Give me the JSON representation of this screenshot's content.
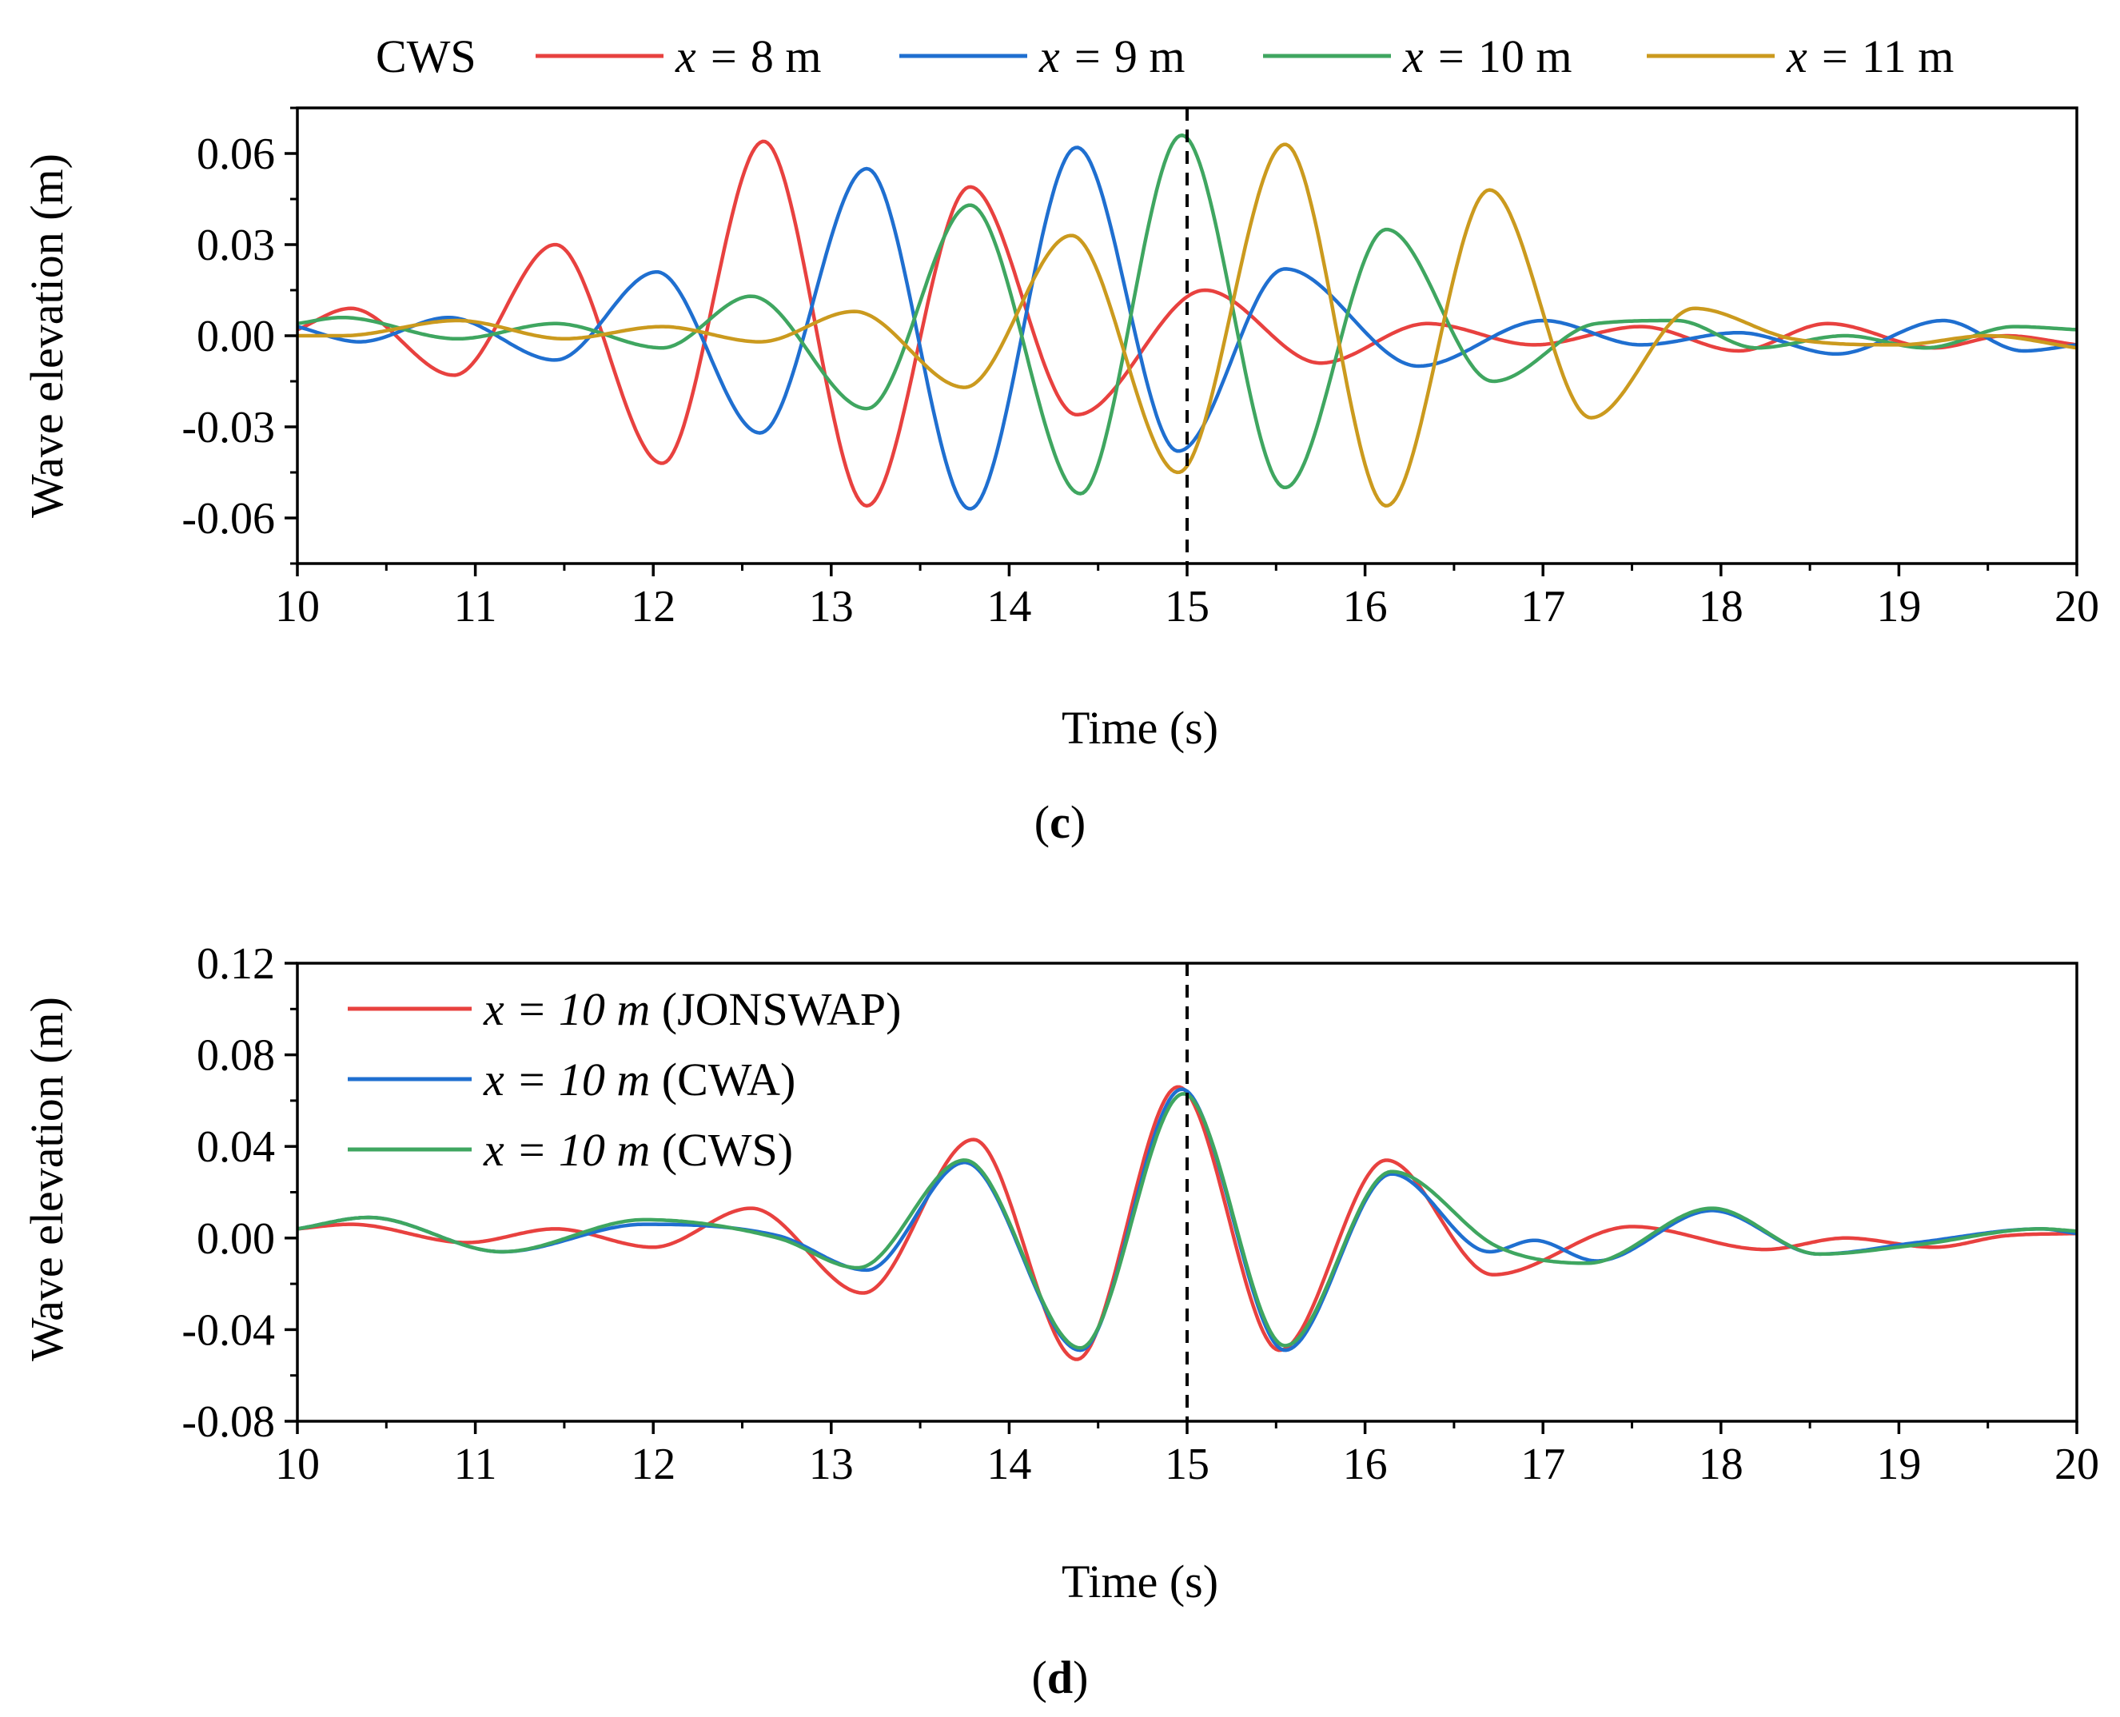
{
  "chart_data": [
    {
      "type": "line",
      "panel_label": "(c)",
      "panel_letter": "c",
      "legend_title": "CWS",
      "legend_prefix": "x = ",
      "legend_unit": " m",
      "xlabel": "Time (s)",
      "ylabel": "Wave elevation (m)",
      "xlim": [
        10,
        20
      ],
      "ylim": [
        -0.075,
        0.075
      ],
      "xticks": [
        10,
        11,
        12,
        13,
        14,
        15,
        16,
        17,
        18,
        19,
        20
      ],
      "xtick_labels": [
        "10",
        "11",
        "12",
        "13",
        "14",
        "15",
        "16",
        "17",
        "18",
        "19",
        "20"
      ],
      "yticks": [
        -0.06,
        -0.03,
        0.0,
        0.03,
        0.06
      ],
      "ytick_labels": [
        "-0.06",
        "-0.03",
        "0.00",
        "0.03",
        "0.06"
      ],
      "vline_x": 15,
      "legend_position": "top, outside",
      "series": [
        {
          "name": "x = 8 m",
          "value": "8",
          "color": "#e8413f",
          "x": [
            10.0,
            10.3,
            10.88,
            11.45,
            12.05,
            12.62,
            13.2,
            13.78,
            14.38,
            15.1,
            15.75,
            16.35,
            16.95,
            17.55,
            18.1,
            18.6,
            19.2,
            19.6,
            20.0
          ],
          "y": [
            0.002,
            0.009,
            -0.013,
            0.03,
            -0.042,
            0.064,
            -0.056,
            0.049,
            -0.026,
            0.015,
            -0.009,
            0.004,
            -0.003,
            0.003,
            -0.005,
            0.004,
            -0.004,
            0.0,
            -0.003
          ]
        },
        {
          "name": "x = 9 m",
          "value": "9",
          "color": "#1f6fd0",
          "x": [
            10.0,
            10.35,
            10.85,
            11.45,
            12.02,
            12.6,
            13.2,
            13.78,
            14.38,
            14.95,
            15.55,
            16.3,
            17.0,
            17.55,
            18.1,
            18.65,
            19.25,
            19.7,
            20.0
          ],
          "y": [
            0.003,
            -0.002,
            0.006,
            -0.008,
            0.021,
            -0.032,
            0.055,
            -0.057,
            0.062,
            -0.038,
            0.022,
            -0.01,
            0.005,
            -0.003,
            0.001,
            -0.006,
            0.005,
            -0.005,
            -0.003
          ]
        },
        {
          "name": "x = 10 m",
          "value": "10",
          "color": "#3fa660",
          "x": [
            10.0,
            10.25,
            10.9,
            11.45,
            12.05,
            12.55,
            13.2,
            13.78,
            14.4,
            14.97,
            15.55,
            16.12,
            16.72,
            17.3,
            17.75,
            18.2,
            18.7,
            19.15,
            19.65,
            20.0
          ],
          "y": [
            0.004,
            0.006,
            -0.001,
            0.004,
            -0.004,
            0.013,
            -0.024,
            0.043,
            -0.052,
            0.066,
            -0.05,
            0.035,
            -0.015,
            0.004,
            0.005,
            -0.004,
            0.0,
            -0.004,
            0.003,
            0.002
          ]
        },
        {
          "name": "x = 11 m",
          "value": "11",
          "color": "#cb9a1e",
          "x": [
            10.0,
            10.25,
            10.9,
            11.5,
            12.05,
            12.6,
            13.13,
            13.75,
            14.35,
            14.95,
            15.55,
            16.12,
            16.7,
            17.27,
            17.85,
            18.4,
            19.0,
            19.5,
            20.0
          ],
          "y": [
            0.0,
            0.0,
            0.005,
            -0.001,
            0.003,
            -0.002,
            0.008,
            -0.017,
            0.033,
            -0.045,
            0.063,
            -0.056,
            0.048,
            -0.027,
            0.009,
            -0.001,
            -0.003,
            0.0,
            -0.004
          ]
        }
      ]
    },
    {
      "type": "line",
      "panel_label": "(d)",
      "panel_letter": "d",
      "legend_prefix": "x = 10 m ",
      "xlabel": "Time (s)",
      "ylabel": "Wave elevation (m)",
      "xlim": [
        10,
        20
      ],
      "ylim": [
        -0.08,
        0.12
      ],
      "xticks": [
        10,
        11,
        12,
        13,
        14,
        15,
        16,
        17,
        18,
        19,
        20
      ],
      "xtick_labels": [
        "10",
        "11",
        "12",
        "13",
        "14",
        "15",
        "16",
        "17",
        "18",
        "19",
        "20"
      ],
      "yticks": [
        -0.08,
        -0.04,
        0.0,
        0.04,
        0.08,
        0.12
      ],
      "ytick_labels": [
        "-0.08",
        "-0.04",
        "0.00",
        "0.04",
        "0.08",
        "0.12"
      ],
      "vline_x": 15,
      "legend_position": "top-left",
      "series": [
        {
          "name": "x = 10 m (JONSWAP)",
          "tag": "(JONSWAP)",
          "color": "#e8413f",
          "x": [
            10.0,
            10.3,
            10.95,
            11.45,
            12.0,
            12.55,
            13.18,
            13.8,
            14.38,
            14.95,
            15.52,
            16.12,
            16.72,
            17.5,
            18.25,
            18.7,
            19.2,
            19.6,
            20.0
          ],
          "y": [
            0.004,
            0.006,
            -0.002,
            0.004,
            -0.004,
            0.013,
            -0.024,
            0.043,
            -0.053,
            0.066,
            -0.049,
            0.034,
            -0.016,
            0.005,
            -0.005,
            0.0,
            -0.004,
            0.001,
            0.002
          ]
        },
        {
          "name": "x = 10 m (CWA)",
          "tag": "(CWA)",
          "color": "#1f6fd0",
          "x": [
            10.0,
            10.4,
            11.15,
            11.95,
            12.7,
            13.2,
            13.75,
            14.4,
            14.97,
            15.55,
            16.15,
            16.7,
            16.95,
            17.3,
            17.95,
            18.55,
            19.1,
            19.8,
            20.0
          ],
          "y": [
            0.004,
            0.009,
            -0.006,
            0.006,
            0.001,
            -0.014,
            0.033,
            -0.049,
            0.065,
            -0.049,
            0.028,
            -0.006,
            -0.001,
            -0.01,
            0.012,
            -0.007,
            -0.002,
            0.004,
            0.002
          ]
        },
        {
          "name": "x = 10 m (CWS)",
          "tag": "(CWS)",
          "color": "#3fa660",
          "x": [
            10.0,
            10.4,
            11.15,
            11.95,
            12.7,
            13.15,
            13.75,
            14.4,
            14.98,
            15.55,
            16.15,
            16.75,
            17.25,
            17.95,
            18.55,
            19.1,
            19.8,
            20.0
          ],
          "y": [
            0.004,
            0.009,
            -0.006,
            0.008,
            0.0,
            -0.013,
            0.034,
            -0.048,
            0.063,
            -0.047,
            0.029,
            -0.004,
            -0.011,
            0.013,
            -0.007,
            -0.003,
            0.004,
            0.003
          ]
        }
      ]
    }
  ]
}
